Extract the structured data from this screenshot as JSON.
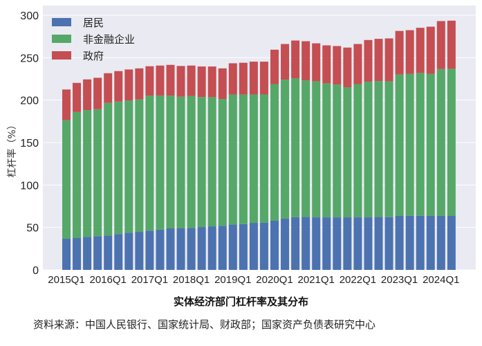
{
  "chart_data": {
    "type": "bar",
    "stacked": true,
    "title": "实体经济部门杠杆率及其分布",
    "source": "资料来源：中国人民银行、国家统计局、财政部；国家资产负债表研究中心",
    "xlabel": "",
    "ylabel": "杠杆率（%）",
    "ylim": [
      0,
      300
    ],
    "yticks": [
      0,
      50,
      100,
      150,
      200,
      250,
      300
    ],
    "grid": true,
    "legend_position": "top-left",
    "categories": [
      "2015Q1",
      "2015Q2",
      "2015Q3",
      "2015Q4",
      "2016Q1",
      "2016Q2",
      "2016Q3",
      "2016Q4",
      "2017Q1",
      "2017Q2",
      "2017Q3",
      "2017Q4",
      "2018Q1",
      "2018Q2",
      "2018Q3",
      "2018Q4",
      "2019Q1",
      "2019Q2",
      "2019Q3",
      "2019Q4",
      "2020Q1",
      "2020Q2",
      "2020Q3",
      "2020Q4",
      "2021Q1",
      "2021Q2",
      "2021Q3",
      "2021Q4",
      "2022Q1",
      "2022Q2",
      "2022Q3",
      "2022Q4",
      "2023Q1",
      "2023Q2",
      "2023Q3",
      "2023Q4",
      "2024Q1",
      "2024Q2"
    ],
    "xtick_labels": [
      "2015Q1",
      "2016Q1",
      "2017Q1",
      "2018Q1",
      "2019Q1",
      "2020Q1",
      "2021Q1",
      "2022Q1",
      "2023Q1",
      "2024Q1"
    ],
    "series": [
      {
        "name": "居民",
        "color": "#4c72b0",
        "values": [
          36.7,
          37.5,
          38.8,
          39.7,
          40.5,
          42.1,
          43.7,
          44.8,
          46.2,
          47.5,
          48.9,
          48.9,
          49.4,
          50.5,
          51.3,
          51.9,
          53.5,
          54.0,
          55.4,
          55.7,
          57.9,
          60.3,
          62.2,
          62.5,
          61.9,
          61.9,
          61.9,
          61.9,
          61.9,
          61.9,
          62.5,
          62.2,
          63.6,
          63.8,
          63.8,
          63.6,
          63.6,
          63.6
        ]
      },
      {
        "name": "非金融企业",
        "color": "#55a868",
        "values": [
          139.6,
          148.5,
          149.5,
          149.6,
          156.2,
          156.2,
          155.7,
          156.0,
          159.2,
          157.9,
          156.5,
          155.1,
          155.6,
          153.2,
          152.2,
          149.4,
          153.2,
          152.7,
          151.3,
          151.0,
          161.0,
          163.8,
          163.6,
          160.8,
          160.3,
          157.9,
          156.5,
          153.3,
          157.0,
          159.8,
          160.0,
          160.0,
          166.6,
          167.3,
          168.2,
          167.5,
          173.0,
          173.3
        ]
      },
      {
        "name": "政府",
        "color": "#c44e52",
        "values": [
          36.2,
          34.3,
          36.1,
          37.0,
          35.0,
          35.9,
          36.7,
          36.6,
          34.5,
          35.3,
          36.1,
          36.2,
          35.7,
          35.9,
          36.1,
          36.1,
          36.7,
          37.3,
          38.6,
          38.6,
          40.5,
          42.0,
          44.4,
          46.1,
          44.7,
          44.7,
          45.3,
          46.7,
          47.2,
          49.1,
          49.7,
          50.5,
          51.3,
          51.3,
          53.2,
          55.4,
          56.5,
          56.7
        ]
      }
    ]
  }
}
